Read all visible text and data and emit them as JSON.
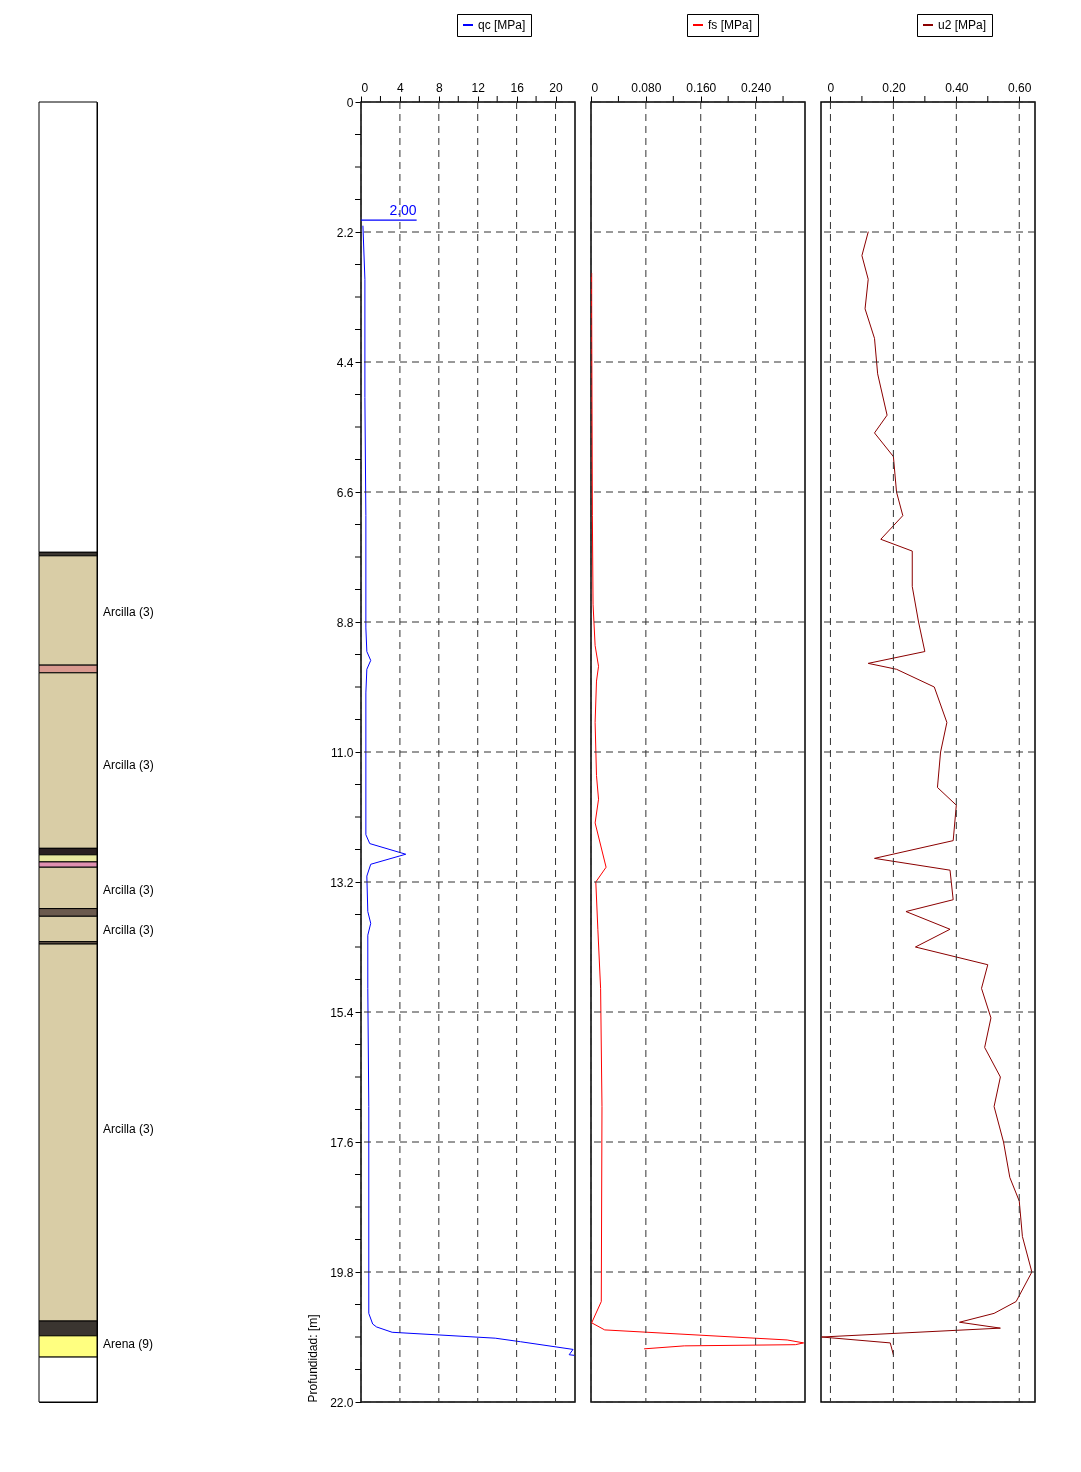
{
  "chart_data": [
    {
      "type": "bar",
      "stacked": true,
      "categories": [
        null
      ],
      "ylim": [
        22,
        0
      ],
      "tick_labels": false,
      "series": [
        {
          "color": "#ffffff",
          "values": [
            7.62
          ]
        },
        {
          "color": "#3a3530",
          "values": [
            0.06
          ]
        },
        {
          "color": "#d9cda6",
          "values": [
            1.85
          ]
        },
        {
          "color": "#d9998f",
          "values": [
            0.13
          ]
        },
        {
          "color": "#d9cda6",
          "values": [
            2.97
          ]
        },
        {
          "color": "#2a2020",
          "values": [
            0.11
          ]
        },
        {
          "color": "#e8e8a0",
          "values": [
            0.12
          ]
        },
        {
          "color": "#e090b0",
          "values": [
            0.09
          ]
        },
        {
          "color": "#d9cda6",
          "values": [
            0.7
          ]
        },
        {
          "color": "#6b5a4e",
          "values": [
            0.13
          ]
        },
        {
          "color": "#d9cda6",
          "values": [
            0.43
          ]
        },
        {
          "color": "#6b5a4e",
          "values": [
            0.04
          ]
        },
        {
          "color": "#d9cda6",
          "values": [
            6.38
          ]
        },
        {
          "color": "#3a3530",
          "values": [
            0.25
          ]
        },
        {
          "color": "#ffff80",
          "values": [
            0.36
          ]
        },
        {
          "color": "#ffffff",
          "values": [
            0.76
          ]
        }
      ],
      "annotations": [
        "Arcilla (3)",
        "Arcilla (3)",
        "Arcilla (3)",
        "Arcilla (3)",
        "Arcilla (3)",
        "Arena (9)"
      ]
    },
    {
      "type": "line",
      "orientation": "horizontal",
      "ylabel": "Profundidad: [m]",
      "legend": "top right",
      "grid": true,
      "x": [
        2.1,
        3,
        5,
        7,
        8.9,
        9.3,
        9.45,
        9.6,
        10,
        12.4,
        12.55,
        12.73,
        12.9,
        13.1,
        13.7,
        13.9,
        14.1,
        15,
        17,
        19.8,
        20.5,
        20.68,
        20.73,
        20.82,
        20.92,
        20.98,
        21.11,
        21.2,
        21.21
      ],
      "series": [
        {
          "name": "qc [MPa]",
          "color": "#0000ff",
          "values": [
            0.2,
            0.4,
            0.4,
            0.5,
            0.5,
            0.6,
            1.0,
            0.6,
            0.5,
            0.5,
            0.9,
            4.6,
            1.0,
            0.6,
            0.7,
            1.0,
            0.7,
            0.7,
            0.8,
            0.8,
            0.8,
            1.2,
            1.6,
            3.2,
            13.8,
            16.4,
            21.8,
            21.4,
            21.9
          ]
        }
      ],
      "xlim": [
        0,
        22
      ],
      "xticks": [
        0,
        {
          "value": 2,
          "label": null
        },
        4,
        {
          "value": 6,
          "label": null
        },
        8,
        {
          "value": 10,
          "label": null
        },
        12,
        {
          "value": 14,
          "label": null
        },
        16,
        {
          "value": 18,
          "label": null
        },
        20
      ],
      "ylim": [
        22,
        0
      ],
      "yticks": [
        0,
        {
          "value": 0.55,
          "label": null
        },
        {
          "value": 1.1,
          "label": null
        },
        {
          "value": 1.65,
          "label": null
        },
        2.2,
        {
          "value": 2.75,
          "label": null
        },
        {
          "value": 3.3,
          "label": null
        },
        {
          "value": 3.85,
          "label": null
        },
        4.4,
        {
          "value": 4.95,
          "label": null
        },
        {
          "value": 5.5,
          "label": null
        },
        {
          "value": 6.05,
          "label": null
        },
        6.6,
        {
          "value": 7.15,
          "label": null
        },
        {
          "value": 7.7,
          "label": null
        },
        {
          "value": 8.25,
          "label": null
        },
        8.8,
        {
          "value": 9.35,
          "label": null
        },
        {
          "value": 9.9,
          "label": null
        },
        {
          "value": 10.45,
          "label": null
        },
        {
          "value": 11,
          "label": "11.0"
        },
        {
          "value": 11.55,
          "label": null
        },
        {
          "value": 12.1,
          "label": null
        },
        {
          "value": 12.65,
          "label": null
        },
        13.2,
        {
          "value": 13.75,
          "label": null
        },
        {
          "value": 14.3,
          "label": null
        },
        {
          "value": 14.85,
          "label": null
        },
        15.4,
        {
          "value": 15.95,
          "label": null
        },
        {
          "value": 16.5,
          "label": null
        },
        {
          "value": 17.05,
          "label": null
        },
        17.6,
        {
          "value": 18.15,
          "label": null
        },
        {
          "value": 18.7,
          "label": null
        },
        {
          "value": 19.25,
          "label": null
        },
        19.8,
        {
          "value": 20.35,
          "label": null
        },
        {
          "value": 20.9,
          "label": null
        },
        {
          "value": 21.45,
          "label": null
        },
        {
          "value": 22,
          "label": "22.0"
        }
      ],
      "ref_lines": [
        {
          "axis": "y",
          "value": 2.0,
          "label": "2.00",
          "color": "#0000ff"
        }
      ]
    },
    {
      "type": "line",
      "orientation": "horizontal",
      "legend": "top right",
      "grid": true,
      "tick_labels": "x",
      "x": [
        2.9,
        3.5,
        7,
        8.5,
        9.2,
        9.55,
        9.8,
        10.5,
        11.4,
        11.8,
        12.2,
        12.95,
        13.2,
        14,
        15,
        17,
        20.3,
        20.66,
        20.78,
        20.95,
        21.0,
        21.03,
        21.05,
        21.1
      ],
      "series": [
        {
          "name": "fs [MPa]",
          "color": "#ff0000",
          "values": [
            0.001,
            0.001,
            0.002,
            0.003,
            0.006,
            0.011,
            0.008,
            0.006,
            0.008,
            0.011,
            0.006,
            0.022,
            0.007,
            0.01,
            0.014,
            0.016,
            0.015,
            0.001,
            0.02,
            0.286,
            0.31,
            0.298,
            0.136,
            0.078
          ]
        }
      ],
      "xlim": [
        0,
        0.312
      ],
      "xticks": [
        0,
        {
          "value": 0.04,
          "label": null
        },
        {
          "value": 0.08,
          "label": "0.080"
        },
        {
          "value": 0.12,
          "label": null
        },
        {
          "value": 0.16,
          "label": "0.160"
        },
        {
          "value": 0.2,
          "label": null
        },
        {
          "value": 0.24,
          "label": "0.240"
        },
        {
          "value": 0.28,
          "label": null
        }
      ],
      "ylim": [
        22,
        0
      ],
      "yticks": [
        0,
        2.2,
        4.4,
        6.6,
        8.8,
        11,
        13.2,
        15.4,
        17.6,
        19.8,
        22
      ]
    },
    {
      "type": "line",
      "orientation": "horizontal",
      "legend": "top right",
      "grid": true,
      "tick_labels": "x",
      "x": [
        2.2,
        2.6,
        3.0,
        3.5,
        4.0,
        4.6,
        5.3,
        5.6,
        6.0,
        6.6,
        7.0,
        7.4,
        7.6,
        8.2,
        8.8,
        9.3,
        9.5,
        9.6,
        9.9,
        10.5,
        11.0,
        11.6,
        11.9,
        12.5,
        12.8,
        13.0,
        13.5,
        13.7,
        14.0,
        14.3,
        14.6,
        15.0,
        15.5,
        16.0,
        16.5,
        17.0,
        17.6,
        18.2,
        18.6,
        19.2,
        19.8,
        20.3,
        20.5,
        20.65,
        20.75,
        20.9,
        21.0,
        21.2
      ],
      "series": [
        {
          "name": "u2 [MPa]",
          "color": "#8b0000",
          "values": [
            0.12,
            0.1,
            0.12,
            0.11,
            0.14,
            0.15,
            0.18,
            0.14,
            0.2,
            0.21,
            0.23,
            0.16,
            0.26,
            0.26,
            0.28,
            0.3,
            0.12,
            0.21,
            0.33,
            0.37,
            0.35,
            0.34,
            0.4,
            0.39,
            0.14,
            0.38,
            0.39,
            0.24,
            0.38,
            0.27,
            0.5,
            0.48,
            0.51,
            0.49,
            0.54,
            0.52,
            0.55,
            0.57,
            0.6,
            0.61,
            0.64,
            0.59,
            0.52,
            0.41,
            0.54,
            -0.028,
            0.19,
            0.2
          ]
        }
      ],
      "xlim": [
        -0.03,
        0.65
      ],
      "xticks": [
        0,
        {
          "value": 0.1,
          "label": null
        },
        {
          "value": 0.2,
          "label": "0.20"
        },
        {
          "value": 0.3,
          "label": null
        },
        {
          "value": 0.4,
          "label": "0.40"
        },
        {
          "value": 0.5,
          "label": null
        },
        {
          "value": 0.6,
          "label": "0.60"
        }
      ],
      "ylim": [
        22,
        0
      ],
      "yticks": [
        0,
        2.2,
        4.4,
        6.6,
        8.8,
        11,
        13.2,
        15.4,
        17.6,
        19.8,
        22
      ]
    }
  ]
}
